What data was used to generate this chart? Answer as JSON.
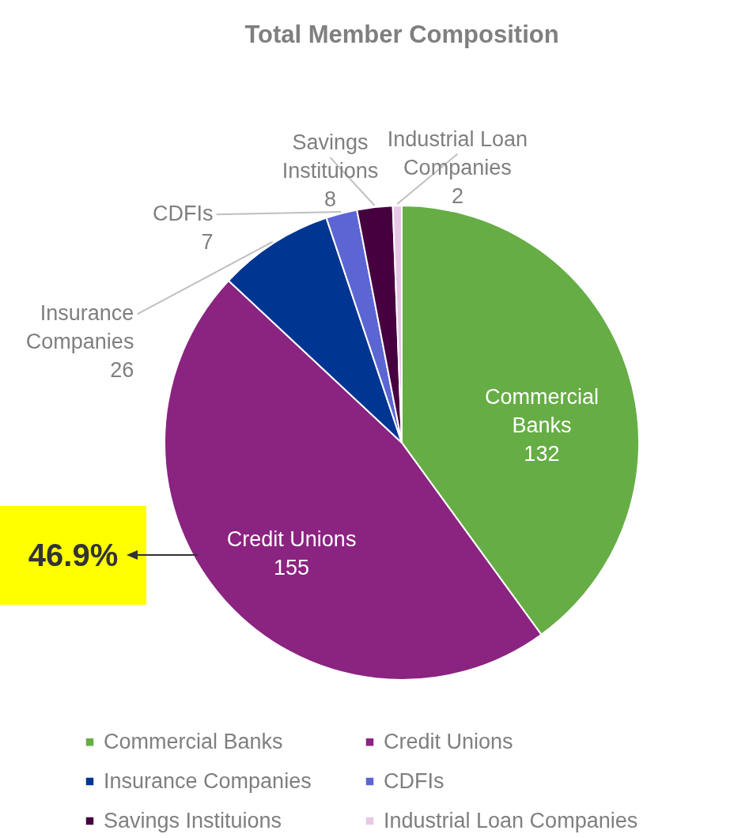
{
  "chart_data": {
    "type": "pie",
    "title": "Total Member Composition",
    "categories": [
      "Commercial Banks",
      "Credit Unions",
      "Insurance Companies",
      "CDFIs",
      "Savings Instituions",
      "Industrial Loan Companies"
    ],
    "values": [
      132,
      155,
      26,
      7,
      8,
      2
    ],
    "colors": [
      "#66ad45",
      "#8b2381",
      "#003591",
      "#5b65d4",
      "#47003f",
      "#e6c8e6"
    ],
    "data_labels": true,
    "legend": "bottom",
    "annotations": [
      "46.9%"
    ]
  }
}
